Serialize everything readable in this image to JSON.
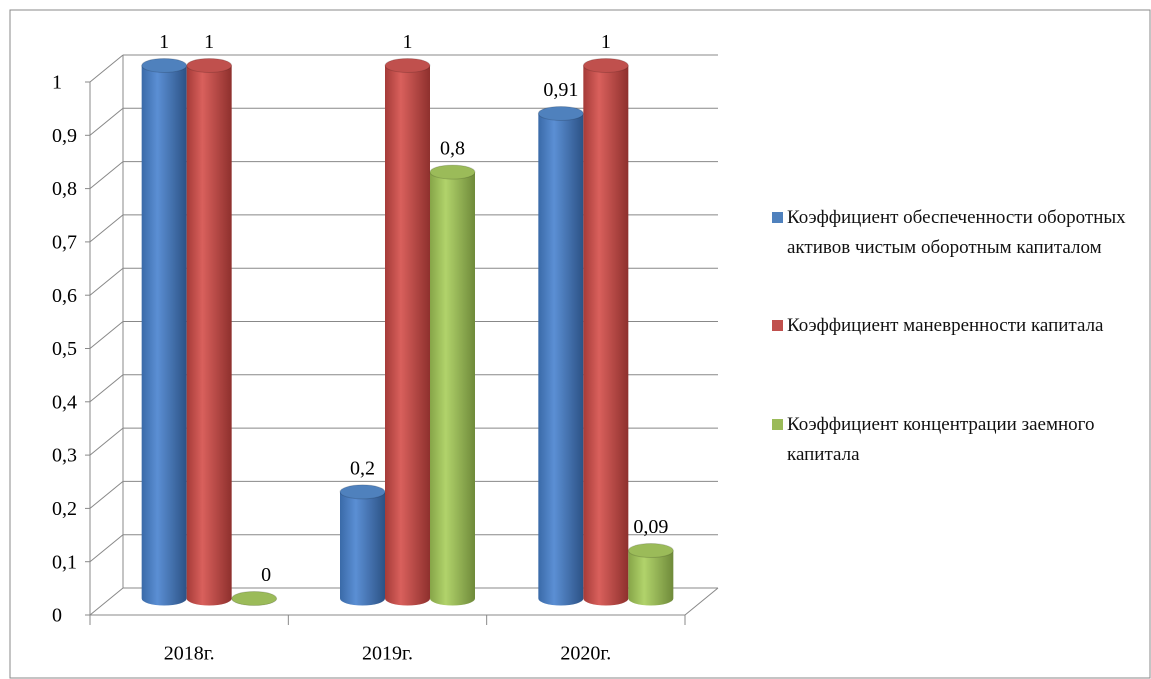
{
  "chart_data": {
    "type": "bar3d",
    "categories": [
      "2018г.",
      "2019г.",
      "2020г."
    ],
    "series": [
      {
        "name": "Коэффициент обеспеченности оборотных активов чистым оборотным капиталом",
        "color": "#4f81bd",
        "values": [
          1,
          0.2,
          0.91
        ],
        "value_labels": [
          "1",
          "0,2",
          "0,91"
        ]
      },
      {
        "name": "Коэффициент маневренности капитала",
        "color": "#c0504d",
        "values": [
          1,
          1,
          1
        ],
        "value_labels": [
          "1",
          "1",
          "1"
        ]
      },
      {
        "name": "Коэффициент концентрации заемного капитала",
        "color": "#9bbb59",
        "values": [
          0,
          0.8,
          0.09
        ],
        "value_labels": [
          "0",
          "0,8",
          "0,09"
        ]
      }
    ],
    "ylim": [
      0,
      1
    ],
    "yticks": [
      0,
      {
        "value": 0.1,
        "label": "0,1"
      },
      {
        "value": 0.2,
        "label": "0,2"
      },
      {
        "value": 0.3,
        "label": "0,3"
      },
      {
        "value": 0.4,
        "label": "0,4"
      },
      {
        "value": 0.5,
        "label": "0,5"
      },
      {
        "value": 0.6,
        "label": "0,6"
      },
      {
        "value": 0.7,
        "label": "0,7"
      },
      {
        "value": 0.8,
        "label": "0,8"
      },
      {
        "value": 0.9,
        "label": "0,9"
      },
      {
        "value": 1,
        "label": "1"
      }
    ],
    "grid": true,
    "legend": "right"
  }
}
